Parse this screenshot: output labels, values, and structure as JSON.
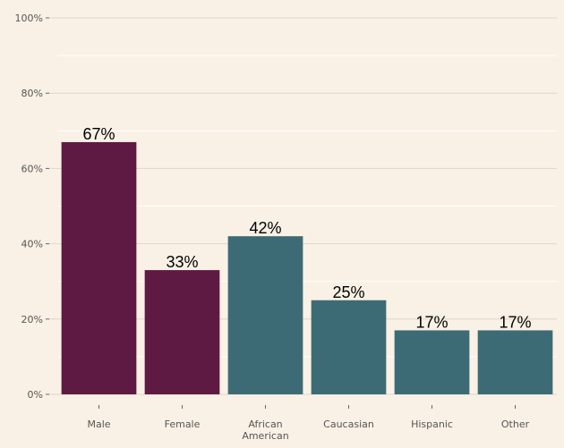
{
  "chart_data": {
    "type": "bar",
    "title": "",
    "xlabel": "",
    "ylabel": "",
    "categories": [
      {
        "label": "Male",
        "lines": [
          "Male"
        ],
        "value": 67,
        "data_label": "67%",
        "group": "sex"
      },
      {
        "label": "Female",
        "lines": [
          "Female"
        ],
        "value": 33,
        "data_label": "33%",
        "group": "sex"
      },
      {
        "label": "African American",
        "lines": [
          "African",
          "American"
        ],
        "value": 42,
        "data_label": "42%",
        "group": "race"
      },
      {
        "label": "Caucasian",
        "lines": [
          "Caucasian"
        ],
        "value": 25,
        "data_label": "25%",
        "group": "race"
      },
      {
        "label": "Hispanic",
        "lines": [
          "Hispanic"
        ],
        "value": 17,
        "data_label": "17%",
        "group": "race"
      },
      {
        "label": "Other",
        "lines": [
          "Other"
        ],
        "value": 17,
        "data_label": "17%",
        "group": "race"
      }
    ],
    "ylim": [
      0,
      100
    ],
    "yticks": [
      {
        "value": 0,
        "label": "0%"
      },
      {
        "value": 20,
        "label": "20%"
      },
      {
        "value": 40,
        "label": "40%"
      },
      {
        "value": 60,
        "label": "60%"
      },
      {
        "value": 80,
        "label": "80%"
      },
      {
        "value": 100,
        "label": "100%"
      }
    ],
    "minor_grid": [
      10,
      30,
      50,
      70,
      90
    ],
    "grid": true,
    "legend": "none"
  },
  "colors": {
    "background": "#f9f1e5",
    "sex": "#5e1a42",
    "race": "#3d6b75",
    "grid_major": "#dcd6cc",
    "grid_minor": "#ffffff",
    "tick_text": "#555555",
    "label_text": "#000000"
  }
}
